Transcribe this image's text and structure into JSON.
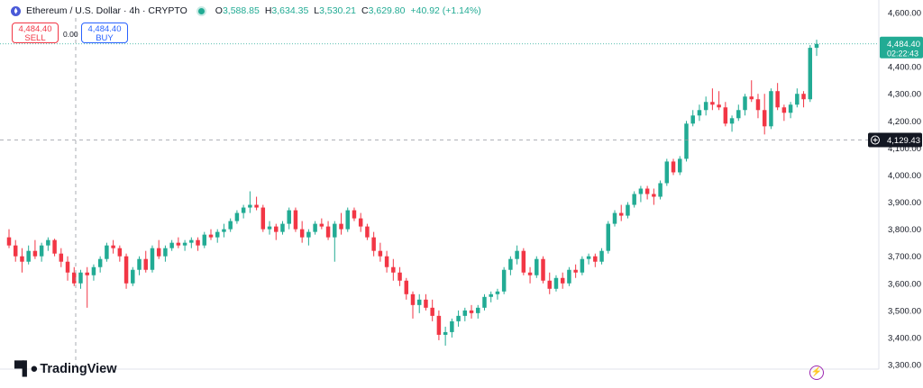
{
  "header": {
    "symbol_title": "Ethereum / U.S. Dollar · 4h · CRYPTO",
    "o_label": "O",
    "o_value": "3,588.85",
    "h_label": "H",
    "h_value": "3,634.35",
    "l_label": "L",
    "l_value": "3,530.21",
    "c_label": "C",
    "c_value": "3,629.80",
    "change": "+40.92 (+1.14%)"
  },
  "trade": {
    "sell_price": "4,484.40",
    "sell_label": "SELL",
    "spread": "0.00",
    "buy_price": "4,484.40",
    "buy_label": "BUY"
  },
  "price_tag": {
    "price": "4,484.40",
    "countdown": "02:22:43"
  },
  "crosshair": {
    "price": "4,129.43",
    "plus_icon": "plus-circle-icon"
  },
  "brand": {
    "name": "TradingView",
    "logo_icon": "tradingview-logo-icon"
  },
  "bolt_icon": "lightning-icon",
  "colors": {
    "up": "#22ab94",
    "down": "#f23645",
    "axis_text": "#131722",
    "grid": "#f0f3fa"
  },
  "chart_data": {
    "type": "candlestick",
    "title": "Ethereum / U.S. Dollar · 4h · CRYPTO",
    "y_axis_side": "right",
    "ylim": [
      3270,
      4620
    ],
    "y_ticks": [
      3300,
      3400,
      3500,
      3600,
      3700,
      3800,
      3900,
      4000,
      4100,
      4200,
      4300,
      4400,
      4500,
      4600
    ],
    "y_tick_labels": [
      "3,300.00",
      "3,400.00",
      "3,500.00",
      "3,600.00",
      "3,700.00",
      "3,800.00",
      "3,900.00",
      "4,000.00",
      "4,100.00",
      "4,200.00",
      "4,300.00",
      "4,400.00",
      "4,500.00",
      "4,600.00"
    ],
    "current_price": 4484.4,
    "crosshair_price": 4129.43,
    "candles": [
      [
        3770,
        3800,
        3730,
        3740
      ],
      [
        3740,
        3760,
        3680,
        3700
      ],
      [
        3700,
        3730,
        3640,
        3680
      ],
      [
        3680,
        3740,
        3670,
        3720
      ],
      [
        3720,
        3760,
        3690,
        3700
      ],
      [
        3700,
        3750,
        3680,
        3740
      ],
      [
        3740,
        3770,
        3720,
        3760
      ],
      [
        3760,
        3765,
        3700,
        3710
      ],
      [
        3710,
        3730,
        3660,
        3680
      ],
      [
        3680,
        3700,
        3610,
        3640
      ],
      [
        3640,
        3660,
        3590,
        3600
      ],
      [
        3600,
        3650,
        3580,
        3640
      ],
      [
        3640,
        3660,
        3510,
        3630
      ],
      [
        3630,
        3670,
        3610,
        3660
      ],
      [
        3660,
        3700,
        3640,
        3690
      ],
      [
        3690,
        3750,
        3680,
        3740
      ],
      [
        3740,
        3760,
        3710,
        3730
      ],
      [
        3730,
        3740,
        3680,
        3700
      ],
      [
        3700,
        3710,
        3580,
        3600
      ],
      [
        3600,
        3660,
        3590,
        3650
      ],
      [
        3650,
        3700,
        3630,
        3690
      ],
      [
        3690,
        3720,
        3640,
        3650
      ],
      [
        3650,
        3740,
        3640,
        3730
      ],
      [
        3730,
        3760,
        3690,
        3700
      ],
      [
        3700,
        3740,
        3680,
        3730
      ],
      [
        3730,
        3760,
        3720,
        3750
      ],
      [
        3750,
        3770,
        3730,
        3740
      ],
      [
        3740,
        3760,
        3720,
        3750
      ],
      [
        3750,
        3770,
        3730,
        3760
      ],
      [
        3760,
        3770,
        3720,
        3740
      ],
      [
        3740,
        3790,
        3730,
        3780
      ],
      [
        3780,
        3800,
        3760,
        3770
      ],
      [
        3770,
        3800,
        3750,
        3790
      ],
      [
        3790,
        3820,
        3770,
        3800
      ],
      [
        3800,
        3840,
        3790,
        3830
      ],
      [
        3830,
        3870,
        3820,
        3860
      ],
      [
        3860,
        3890,
        3840,
        3880
      ],
      [
        3880,
        3940,
        3860,
        3890
      ],
      [
        3890,
        3920,
        3870,
        3880
      ],
      [
        3880,
        3890,
        3790,
        3800
      ],
      [
        3800,
        3830,
        3780,
        3810
      ],
      [
        3810,
        3820,
        3760,
        3790
      ],
      [
        3790,
        3830,
        3780,
        3820
      ],
      [
        3820,
        3880,
        3800,
        3870
      ],
      [
        3870,
        3880,
        3790,
        3800
      ],
      [
        3800,
        3830,
        3750,
        3770
      ],
      [
        3770,
        3800,
        3740,
        3790
      ],
      [
        3790,
        3830,
        3780,
        3820
      ],
      [
        3820,
        3840,
        3800,
        3810
      ],
      [
        3810,
        3830,
        3760,
        3770
      ],
      [
        3770,
        3830,
        3680,
        3820
      ],
      [
        3820,
        3860,
        3780,
        3800
      ],
      [
        3800,
        3880,
        3790,
        3870
      ],
      [
        3870,
        3880,
        3830,
        3840
      ],
      [
        3840,
        3860,
        3790,
        3810
      ],
      [
        3810,
        3820,
        3760,
        3770
      ],
      [
        3770,
        3790,
        3700,
        3720
      ],
      [
        3720,
        3750,
        3680,
        3700
      ],
      [
        3700,
        3720,
        3640,
        3660
      ],
      [
        3660,
        3690,
        3610,
        3640
      ],
      [
        3640,
        3660,
        3590,
        3610
      ],
      [
        3610,
        3620,
        3540,
        3560
      ],
      [
        3560,
        3570,
        3470,
        3520
      ],
      [
        3520,
        3560,
        3490,
        3540
      ],
      [
        3540,
        3560,
        3500,
        3510
      ],
      [
        3510,
        3540,
        3460,
        3480
      ],
      [
        3480,
        3500,
        3390,
        3410
      ],
      [
        3410,
        3440,
        3370,
        3420
      ],
      [
        3420,
        3470,
        3400,
        3460
      ],
      [
        3460,
        3500,
        3440,
        3480
      ],
      [
        3480,
        3510,
        3460,
        3500
      ],
      [
        3500,
        3520,
        3470,
        3490
      ],
      [
        3490,
        3520,
        3470,
        3510
      ],
      [
        3510,
        3560,
        3500,
        3550
      ],
      [
        3550,
        3570,
        3530,
        3560
      ],
      [
        3560,
        3580,
        3540,
        3570
      ],
      [
        3570,
        3660,
        3560,
        3650
      ],
      [
        3650,
        3700,
        3630,
        3690
      ],
      [
        3690,
        3740,
        3670,
        3720
      ],
      [
        3720,
        3730,
        3630,
        3640
      ],
      [
        3640,
        3660,
        3600,
        3630
      ],
      [
        3630,
        3700,
        3620,
        3690
      ],
      [
        3690,
        3700,
        3600,
        3610
      ],
      [
        3610,
        3640,
        3560,
        3580
      ],
      [
        3580,
        3630,
        3570,
        3620
      ],
      [
        3620,
        3640,
        3580,
        3600
      ],
      [
        3600,
        3660,
        3590,
        3650
      ],
      [
        3650,
        3670,
        3620,
        3640
      ],
      [
        3640,
        3700,
        3630,
        3690
      ],
      [
        3690,
        3710,
        3670,
        3700
      ],
      [
        3700,
        3710,
        3660,
        3680
      ],
      [
        3680,
        3730,
        3670,
        3720
      ],
      [
        3720,
        3830,
        3710,
        3820
      ],
      [
        3820,
        3870,
        3810,
        3860
      ],
      [
        3860,
        3890,
        3830,
        3850
      ],
      [
        3850,
        3900,
        3840,
        3890
      ],
      [
        3890,
        3940,
        3880,
        3930
      ],
      [
        3930,
        3960,
        3900,
        3950
      ],
      [
        3950,
        3960,
        3910,
        3930
      ],
      [
        3930,
        3950,
        3890,
        3920
      ],
      [
        3920,
        3980,
        3910,
        3970
      ],
      [
        3970,
        4060,
        3960,
        4050
      ],
      [
        4050,
        4060,
        4000,
        4010
      ],
      [
        4010,
        4070,
        4000,
        4060
      ],
      [
        4060,
        4200,
        4050,
        4190
      ],
      [
        4190,
        4240,
        4180,
        4220
      ],
      [
        4220,
        4260,
        4200,
        4240
      ],
      [
        4240,
        4290,
        4220,
        4270
      ],
      [
        4270,
        4320,
        4240,
        4260
      ],
      [
        4260,
        4310,
        4240,
        4250
      ],
      [
        4250,
        4270,
        4180,
        4190
      ],
      [
        4190,
        4220,
        4160,
        4210
      ],
      [
        4210,
        4260,
        4200,
        4240
      ],
      [
        4240,
        4300,
        4220,
        4290
      ],
      [
        4290,
        4350,
        4270,
        4280
      ],
      [
        4280,
        4300,
        4210,
        4240
      ],
      [
        4240,
        4300,
        4150,
        4180
      ],
      [
        4180,
        4320,
        4170,
        4310
      ],
      [
        4310,
        4340,
        4240,
        4250
      ],
      [
        4250,
        4260,
        4200,
        4230
      ],
      [
        4230,
        4270,
        4210,
        4260
      ],
      [
        4260,
        4320,
        4250,
        4300
      ],
      [
        4300,
        4310,
        4250,
        4280
      ],
      [
        4280,
        4480,
        4270,
        4470
      ],
      [
        4470,
        4500,
        4440,
        4484.4
      ]
    ]
  }
}
